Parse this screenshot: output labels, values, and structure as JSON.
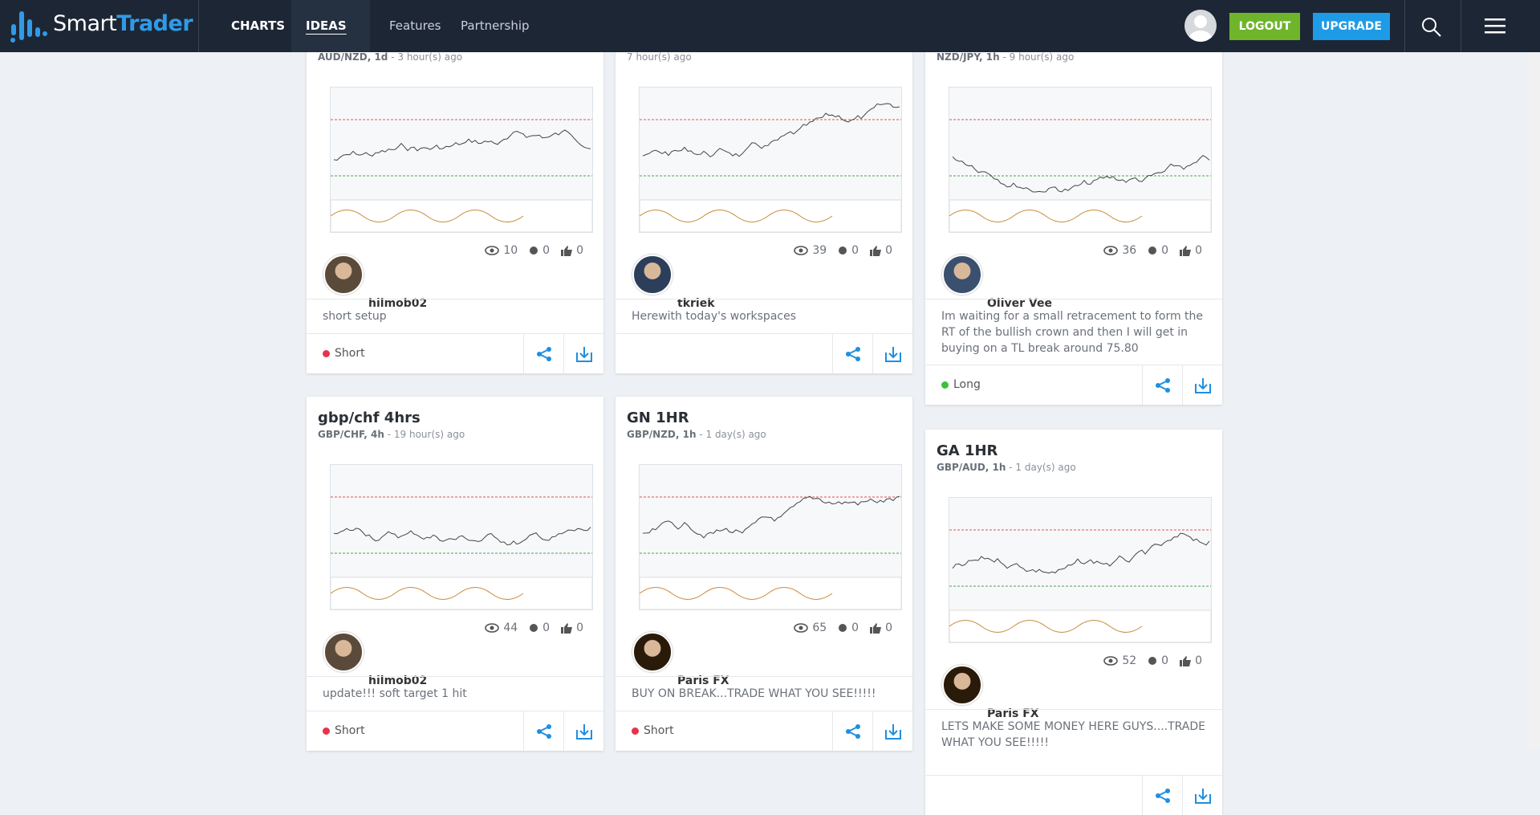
{
  "header": {
    "logo_main": "Smart",
    "logo_accent": "Trader",
    "nav": [
      "CHARTS",
      "IDEAS",
      "Features",
      "Partnership"
    ],
    "logout": "LOGOUT",
    "upgrade": "UPGRADE"
  },
  "cards": [
    {
      "symbol": "AUD/NZD, 1d",
      "time": "- 3 hour(s) ago",
      "views": 10,
      "comments": 0,
      "likes": 0,
      "author": "hilmob02",
      "description": "short setup",
      "direction": "Short"
    },
    {
      "time": "7 hour(s) ago",
      "views": 39,
      "comments": 0,
      "likes": 0,
      "author": "tkriek",
      "description": "Herewith today's workspaces"
    },
    {
      "symbol": "NZD/JPY, 1h",
      "time": "- 9 hour(s) ago",
      "views": 36,
      "comments": 0,
      "likes": 0,
      "author": "Oliver Vee",
      "description": "Im waiting for a small retracement to form the RT of the bullish crown and then I will get in buying on a TL break around 75.80",
      "direction": "Long"
    },
    {
      "title": "gbp/chf 4hrs",
      "symbol": "GBP/CHF, 4h",
      "time": "- 19 hour(s) ago",
      "views": 44,
      "comments": 0,
      "likes": 0,
      "author": "hilmob02",
      "description": "update!!! soft target 1 hit",
      "direction": "Short"
    },
    {
      "title": "GN 1HR",
      "symbol": "GBP/NZD, 1h",
      "time": "- 1 day(s) ago",
      "views": 65,
      "comments": 0,
      "likes": 0,
      "author": "Paris FX",
      "description": "BUY ON BREAK...TRADE WHAT YOU SEE!!!!!",
      "direction": "Short"
    },
    {
      "title": "GA 1HR",
      "symbol": "GBP/AUD, 1h",
      "time": "- 1 day(s) ago",
      "views": 52,
      "comments": 0,
      "likes": 0,
      "author": "Paris FX",
      "description": "LETS MAKE SOME MONEY HERE GUYS....TRADE WHAT YOU SEE!!!!!"
    }
  ]
}
